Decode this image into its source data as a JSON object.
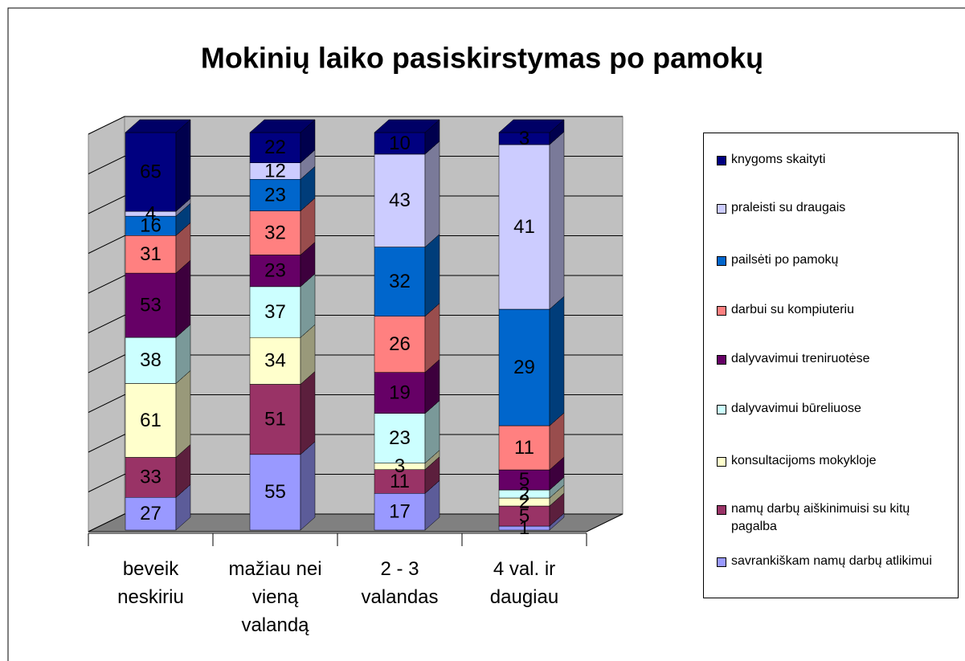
{
  "chart_data": {
    "type": "bar",
    "stacking": "percent",
    "three_d": true,
    "title": "Mokinių  laiko pasiskirstymas po pamokų",
    "categories": [
      "beveik neskiriu",
      "mažiau nei vieną valandą",
      "2 - 3 valandas",
      "4 val. ir daugiau"
    ],
    "series": [
      {
        "name": "savrankiškam namų darbų atlikimui",
        "color": "#9999ff",
        "values": [
          27,
          55,
          17,
          1
        ]
      },
      {
        "name": "namų darbų aiškinimuisi su kitų pagalba",
        "color": "#993366",
        "values": [
          33,
          51,
          11,
          5
        ]
      },
      {
        "name": "konsultacijoms mokykloje",
        "color": "#ffffcc",
        "values": [
          61,
          34,
          3,
          2
        ]
      },
      {
        "name": "dalyvavimui būreliuose",
        "color": "#ccffff",
        "values": [
          38,
          37,
          23,
          2
        ]
      },
      {
        "name": "dalyvavimui treniruotėse",
        "color": "#660066",
        "values": [
          53,
          23,
          19,
          5
        ]
      },
      {
        "name": "darbui su kompiuteriu",
        "color": "#ff8080",
        "values": [
          31,
          32,
          26,
          11
        ]
      },
      {
        "name": "pailsėti po pamokų",
        "color": "#0066cc",
        "values": [
          16,
          23,
          32,
          29
        ]
      },
      {
        "name": "praleisti su draugais",
        "color": "#ccccff",
        "values": [
          4,
          12,
          43,
          41
        ]
      },
      {
        "name": "knygoms skaityti",
        "color": "#000080",
        "values": [
          65,
          22,
          10,
          3
        ]
      }
    ],
    "ylim": [
      0,
      100
    ],
    "yticks": [
      0,
      10,
      20,
      30,
      40,
      50,
      60,
      70,
      80,
      90,
      100
    ],
    "grid": true,
    "legend": "right"
  }
}
